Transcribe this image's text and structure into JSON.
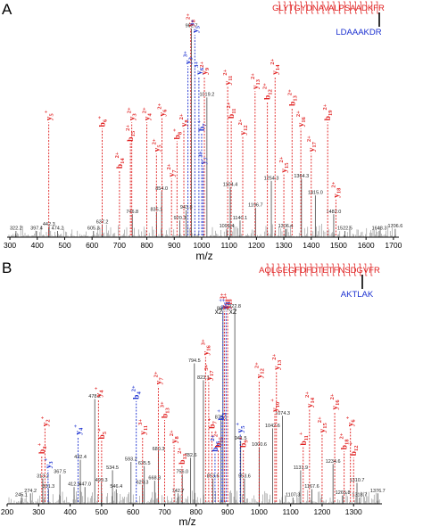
{
  "colors": {
    "b_ion": "#e02020",
    "y_ion": "#1a2fd0",
    "spectrum": "#777777",
    "axis": "#000000"
  },
  "chart_data": [
    {
      "type": "bar",
      "panel": "A",
      "xlabel": "m/z",
      "xlim": [
        290,
        1720
      ],
      "xticks": [
        "300",
        "400",
        "500",
        "600",
        "700",
        "800",
        "900",
        "1000",
        "1100",
        "1200",
        "1300",
        "1400",
        "1500",
        "1600",
        "1700"
      ],
      "peptides": [
        {
          "text": "GLYTGYDNAVALPSAADKFR",
          "color": "red"
        },
        {
          "text": "LDAAAKDR",
          "color": "blue"
        }
      ],
      "peaks": [
        {
          "x": 322.2,
          "y": 3,
          "label": "322.2"
        },
        {
          "x": 397.4,
          "y": 3,
          "label": "397.4"
        },
        {
          "x": 442.3,
          "y": 5,
          "label": "442.3"
        },
        {
          "x": 474.2,
          "y": 3,
          "label": "474.2"
        },
        {
          "x": 605.3,
          "y": 3,
          "label": "605.3"
        },
        {
          "x": 637.2,
          "y": 6,
          "label": "637.2"
        },
        {
          "x": 746.8,
          "y": 11,
          "label": "746.8"
        },
        {
          "x": 835.1,
          "y": 12,
          "label": "835.1"
        },
        {
          "x": 854.0,
          "y": 22,
          "label": "854.0"
        },
        {
          "x": 920.3,
          "y": 8,
          "label": "920.3"
        },
        {
          "x": 943.8,
          "y": 13,
          "label": "943.8"
        },
        {
          "x": 962.7,
          "y": 100,
          "label": "962.7"
        },
        {
          "x": 1019.2,
          "y": 67,
          "label": "1019.2"
        },
        {
          "x": 1091.4,
          "y": 4,
          "label": "1091.4"
        },
        {
          "x": 1104.4,
          "y": 24,
          "label": "1104.4"
        },
        {
          "x": 1140.1,
          "y": 8,
          "label": "1140.1"
        },
        {
          "x": 1196.7,
          "y": 14,
          "label": "1196.7"
        },
        {
          "x": 1254.3,
          "y": 27,
          "label": "1254.3"
        },
        {
          "x": 1306.4,
          "y": 4,
          "label": "1306.4"
        },
        {
          "x": 1364.3,
          "y": 28,
          "label": "1364.3"
        },
        {
          "x": 1415.0,
          "y": 20,
          "label": "1415.0"
        },
        {
          "x": 1482.0,
          "y": 11,
          "label": "1482.0"
        },
        {
          "x": 1522.5,
          "y": 3,
          "label": "1522.5"
        },
        {
          "x": 1648.3,
          "y": 3,
          "label": "1648.3"
        },
        {
          "x": 1706.6,
          "y": 4,
          "label": "1706.6"
        }
      ],
      "ions": [
        {
          "x": 442,
          "type": "y",
          "name": "y",
          "sub": "5",
          "sup": "+",
          "ytop": 55
        },
        {
          "x": 637,
          "type": "b",
          "name": "b",
          "sub": "6",
          "sup": "+",
          "ytop": 52
        },
        {
          "x": 700,
          "type": "b",
          "name": "b",
          "sub": "14",
          "sup": "2+",
          "ytop": 32
        },
        {
          "x": 740,
          "type": "b",
          "name": "b",
          "sub": "15",
          "sup": "2+",
          "ytop": 45
        },
        {
          "x": 745,
          "type": "y",
          "name": "y",
          "sub": "3",
          "sup": "2+",
          "ytop": 55
        },
        {
          "x": 800,
          "type": "y",
          "name": "y",
          "sub": "4",
          "sup": "2+",
          "ytop": 55
        },
        {
          "x": 835,
          "type": "y",
          "name": "y",
          "sub": "5",
          "sup": "2+",
          "ytop": 40
        },
        {
          "x": 855,
          "type": "y",
          "name": "y",
          "sub": "6",
          "sup": "2+",
          "ytop": 57
        },
        {
          "x": 890,
          "type": "y",
          "name": "y",
          "sub": "7",
          "sup": "2+",
          "ytop": 28
        },
        {
          "x": 910,
          "type": "b",
          "name": "b",
          "sub": "8",
          "sup": "+",
          "ytop": 46
        },
        {
          "x": 935,
          "type": "y",
          "name": "y",
          "sub": "8",
          "sup": "2+",
          "ytop": 52
        },
        {
          "x": 950,
          "type": "y",
          "name": "y",
          "sub": "3",
          "sup": "3+",
          "ytop": 82,
          "blue": true
        },
        {
          "x": 960,
          "type": "y",
          "name": "y",
          "sub": "8",
          "sup": "2+",
          "ytop": 100
        },
        {
          "x": 975,
          "type": "y",
          "name": "y",
          "sub": "5",
          "sup": "3+",
          "ytop": 97,
          "blue": true
        },
        {
          "x": 990,
          "type": "y",
          "name": "y",
          "sub": "6",
          "sup": "3+",
          "ytop": 77,
          "blue": true
        },
        {
          "x": 1000,
          "type": "b",
          "name": "b",
          "sub": "7",
          "sup": "+",
          "ytop": 50,
          "blue": true
        },
        {
          "x": 1005,
          "type": "y",
          "name": "y",
          "sub": "7",
          "sup": "3+",
          "ytop": 34,
          "blue": true
        },
        {
          "x": 1010,
          "type": "y",
          "name": "y",
          "sub": "9",
          "sup": "2+",
          "ytop": 77
        },
        {
          "x": 1095,
          "type": "y",
          "name": "y",
          "sub": "11",
          "sup": "2+",
          "ytop": 72
        },
        {
          "x": 1108,
          "type": "b",
          "name": "b",
          "sub": "11",
          "sup": "2+",
          "ytop": 56
        },
        {
          "x": 1150,
          "type": "y",
          "name": "y",
          "sub": "12",
          "sup": "2+",
          "ytop": 48
        },
        {
          "x": 1195,
          "type": "y",
          "name": "y",
          "sub": "13",
          "sup": "2+",
          "ytop": 70
        },
        {
          "x": 1240,
          "type": "b",
          "name": "b",
          "sub": "12",
          "sup": "2+",
          "ytop": 65
        },
        {
          "x": 1268,
          "type": "y",
          "name": "y",
          "sub": "14",
          "sup": "2+",
          "ytop": 77
        },
        {
          "x": 1300,
          "type": "y",
          "name": "y",
          "sub": "15",
          "sup": "2+",
          "ytop": 30
        },
        {
          "x": 1330,
          "type": "b",
          "name": "b",
          "sub": "13",
          "sup": "2+",
          "ytop": 62
        },
        {
          "x": 1362,
          "type": "y",
          "name": "y",
          "sub": "16",
          "sup": "2+",
          "ytop": 52
        },
        {
          "x": 1400,
          "type": "y",
          "name": "y",
          "sub": "17",
          "sup": "2+",
          "ytop": 40
        },
        {
          "x": 1460,
          "type": "b",
          "name": "b",
          "sub": "19",
          "sup": "2+",
          "ytop": 55
        },
        {
          "x": 1490,
          "type": "y",
          "name": "y",
          "sub": "18",
          "sup": "2+",
          "ytop": 18
        }
      ]
    },
    {
      "type": "bar",
      "panel": "B",
      "xlabel": "m/z",
      "xlim": [
        200,
        1390
      ],
      "xticks": [
        "200",
        "300",
        "400",
        "500",
        "600",
        "700",
        "800",
        "900",
        "1000",
        "1100",
        "1200",
        "1300"
      ],
      "peptides": [
        {
          "text": "AQLGEGFDFDTETFNSDGVFR",
          "color": "red"
        },
        {
          "text": "AKTLAK",
          "color": "blue"
        }
      ],
      "annotations": [
        "x2",
        "x2"
      ],
      "peaks": [
        {
          "x": 245.1,
          "y": 3,
          "label": "245.1"
        },
        {
          "x": 274.2,
          "y": 5,
          "label": "274.2"
        },
        {
          "x": 313.2,
          "y": 12,
          "label": "313.2"
        },
        {
          "x": 331.3,
          "y": 7,
          "label": "331.3"
        },
        {
          "x": 367.5,
          "y": 14,
          "label": "367.5"
        },
        {
          "x": 412.5,
          "y": 8,
          "label": "412.5"
        },
        {
          "x": 432.4,
          "y": 21,
          "label": "432.4"
        },
        {
          "x": 447.0,
          "y": 8,
          "label": "447.0"
        },
        {
          "x": 478.2,
          "y": 50,
          "label": "478.2"
        },
        {
          "x": 499.3,
          "y": 10,
          "label": "499.3"
        },
        {
          "x": 534.5,
          "y": 16,
          "label": "534.5"
        },
        {
          "x": 546.4,
          "y": 7,
          "label": "546.4"
        },
        {
          "x": 593.2,
          "y": 20,
          "label": "593.2"
        },
        {
          "x": 629.3,
          "y": 9,
          "label": "629.3"
        },
        {
          "x": 635.5,
          "y": 18,
          "label": "635.5"
        },
        {
          "x": 668.3,
          "y": 11,
          "label": "668.3"
        },
        {
          "x": 680.3,
          "y": 25,
          "label": "680.3"
        },
        {
          "x": 742.7,
          "y": 5,
          "label": "742.7"
        },
        {
          "x": 756.0,
          "y": 14,
          "label": "756.0"
        },
        {
          "x": 782.6,
          "y": 22,
          "label": "782.6"
        },
        {
          "x": 794.5,
          "y": 67,
          "label": "794.5"
        },
        {
          "x": 823.1,
          "y": 59,
          "label": "823.1"
        },
        {
          "x": 853.6,
          "y": 12,
          "label": "853.6"
        },
        {
          "x": 879.1,
          "y": 40,
          "label": "879.1"
        },
        {
          "x": 885.1,
          "y": 92,
          "label": "885.1"
        },
        {
          "x": 922.8,
          "y": 93,
          "label": "922.8"
        },
        {
          "x": 941.5,
          "y": 30,
          "label": "941.5"
        },
        {
          "x": 953.6,
          "y": 12,
          "label": "953.6"
        },
        {
          "x": 1000.6,
          "y": 27,
          "label": "1000.6"
        },
        {
          "x": 1042.6,
          "y": 36,
          "label": "1042.6"
        },
        {
          "x": 1074.3,
          "y": 42,
          "label": "1074.3"
        },
        {
          "x": 1107.3,
          "y": 3,
          "label": "1107.3"
        },
        {
          "x": 1131.9,
          "y": 16,
          "label": "1131.9"
        },
        {
          "x": 1167.6,
          "y": 7,
          "label": "1167.6"
        },
        {
          "x": 1234.6,
          "y": 19,
          "label": "1234.6"
        },
        {
          "x": 1265.8,
          "y": 4,
          "label": "1265.8"
        },
        {
          "x": 1310.7,
          "y": 10,
          "label": "1310.7"
        },
        {
          "x": 1318.7,
          "y": 3,
          "label": "1318.7"
        },
        {
          "x": 1376.7,
          "y": 5,
          "label": "1376.7"
        }
      ],
      "ions": [
        {
          "x": 310,
          "type": "b",
          "name": "b",
          "sub": "3",
          "sup": "+",
          "ytop": 23
        },
        {
          "x": 320,
          "type": "y",
          "name": "y",
          "sub": "2",
          "sup": "+",
          "ytop": 36
        },
        {
          "x": 330,
          "type": "y",
          "name": "y",
          "sub": "3",
          "sup": "+",
          "ytop": 16,
          "blue": true
        },
        {
          "x": 425,
          "type": "y",
          "name": "y",
          "sub": "4",
          "sup": "+",
          "ytop": 32,
          "blue": true
        },
        {
          "x": 490,
          "type": "y",
          "name": "y",
          "sub": "4",
          "sup": "+",
          "ytop": 50
        },
        {
          "x": 500,
          "type": "b",
          "name": "b",
          "sub": "5",
          "sup": "+",
          "ytop": 30
        },
        {
          "x": 610,
          "type": "b",
          "name": "b",
          "sub": "4",
          "sup": "2+",
          "ytop": 49,
          "blue": true
        },
        {
          "x": 630,
          "type": "y",
          "name": "y",
          "sub": "11",
          "sup": "3+",
          "ytop": 32
        },
        {
          "x": 680,
          "type": "y",
          "name": "y",
          "sub": "7",
          "sup": "2+",
          "ytop": 56
        },
        {
          "x": 700,
          "type": "b",
          "name": "b",
          "sub": "13",
          "sup": "3+",
          "ytop": 40
        },
        {
          "x": 730,
          "type": "y",
          "name": "y",
          "sub": "8",
          "sup": "2+",
          "ytop": 28
        },
        {
          "x": 755,
          "type": "b",
          "name": "b",
          "sub": "13",
          "sup": "2+",
          "ytop": 18
        },
        {
          "x": 830,
          "type": "y",
          "name": "y",
          "sub": "16",
          "sup": "3+",
          "ytop": 70
        },
        {
          "x": 840,
          "type": "y",
          "name": "y",
          "sub": "17",
          "sup": "3+",
          "ytop": 58
        },
        {
          "x": 850,
          "type": "b",
          "name": "b",
          "sub": "7",
          "sup": "+",
          "ytop": 35
        },
        {
          "x": 860,
          "type": "b",
          "name": "b",
          "sub": "16",
          "sup": "2+",
          "ytop": 24,
          "blue": true
        },
        {
          "x": 870,
          "type": "b",
          "name": "b",
          "sub": "15",
          "sup": "2+",
          "ytop": 26
        },
        {
          "x": 880,
          "type": "b",
          "name": "b",
          "sub": "3",
          "sup": "+",
          "ytop": 39,
          "blue": true
        },
        {
          "x": 885,
          "type": "y",
          "name": "y",
          "sub": "6",
          "sup": "+",
          "ytop": 92,
          "blue": true
        },
        {
          "x": 890,
          "type": "y",
          "name": "y",
          "sub": "18",
          "sup": "3+",
          "ytop": 92
        },
        {
          "x": 895,
          "type": "y",
          "name": "y",
          "sub": "9",
          "sup": "+",
          "ytop": 92,
          "blue": true
        },
        {
          "x": 900,
          "type": "y",
          "name": "y",
          "sub": "19",
          "sup": "3+",
          "ytop": 92
        },
        {
          "x": 940,
          "type": "y",
          "name": "y",
          "sub": "5",
          "sup": "+",
          "ytop": 33,
          "blue": true
        },
        {
          "x": 950,
          "type": "b",
          "name": "b",
          "sub": "9",
          "sup": "+",
          "ytop": 26
        },
        {
          "x": 1000,
          "type": "y",
          "name": "y",
          "sub": "12",
          "sup": "2+",
          "ytop": 59
        },
        {
          "x": 1050,
          "type": "y",
          "name": "y",
          "sub": "10",
          "sup": "+",
          "ytop": 43
        },
        {
          "x": 1055,
          "type": "y",
          "name": "y",
          "sub": "13",
          "sup": "2+",
          "ytop": 63
        },
        {
          "x": 1140,
          "type": "b",
          "name": "b",
          "sub": "11",
          "sup": "+",
          "ytop": 27
        },
        {
          "x": 1160,
          "type": "y",
          "name": "y",
          "sub": "14",
          "sup": "2+",
          "ytop": 45
        },
        {
          "x": 1200,
          "type": "y",
          "name": "y",
          "sub": "15",
          "sup": "2+",
          "ytop": 33
        },
        {
          "x": 1240,
          "type": "y",
          "name": "y",
          "sub": "16",
          "sup": "2+",
          "ytop": 44
        },
        {
          "x": 1270,
          "type": "b",
          "name": "b",
          "sub": "18",
          "sup": "2+",
          "ytop": 25
        },
        {
          "x": 1290,
          "type": "y",
          "name": "y",
          "sub": "6",
          "sup": "+",
          "ytop": 36
        },
        {
          "x": 1300,
          "type": "b",
          "name": "b",
          "sub": "12",
          "sup": "+",
          "ytop": 22
        }
      ]
    }
  ]
}
